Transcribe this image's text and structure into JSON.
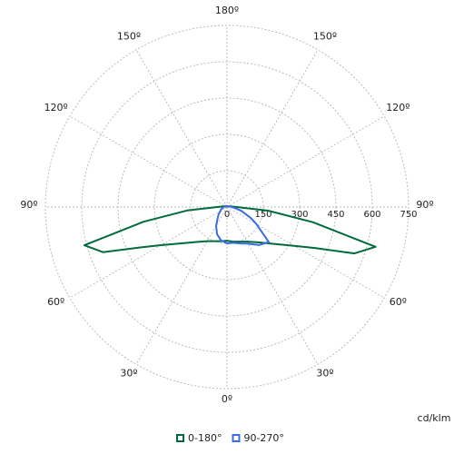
{
  "chart_data": {
    "type": "polar",
    "unit_label": "cd/klm",
    "x": [
      -180,
      -150,
      -120,
      -100,
      -90,
      -85,
      -80,
      -75,
      -70,
      -65,
      -60,
      -50,
      -40,
      -30,
      -20,
      -10,
      0,
      10,
      20,
      30,
      40,
      50,
      60,
      65,
      70,
      75,
      80,
      85,
      90,
      100,
      120,
      150,
      180
    ],
    "xticks": [
      {
        "value": 0,
        "label": "0º"
      },
      {
        "value": 30,
        "label": "30º"
      },
      {
        "value": 60,
        "label": "60º"
      },
      {
        "value": 90,
        "label": "90º"
      },
      {
        "value": 120,
        "label": "120º"
      },
      {
        "value": 150,
        "label": "150º"
      },
      {
        "value": 180,
        "label": "180º"
      }
    ],
    "ylim": [
      0,
      750
    ],
    "yticks": [
      0,
      150,
      300,
      450,
      600,
      750
    ],
    "grid": true,
    "series": [
      {
        "name": "0-180°",
        "color": "#006b3c",
        "values": [
          3,
          3,
          5,
          15,
          40,
          165,
          350,
          610,
          545,
          395,
          315,
          232,
          188,
          163,
          150,
          143,
          139,
          145,
          152,
          165,
          190,
          235,
          320,
          400,
          560,
          635,
          360,
          170,
          40,
          15,
          5,
          3,
          3
        ]
      },
      {
        "name": "90-270°",
        "color": "#3b6be3",
        "values": [
          3,
          5,
          8,
          10,
          12,
          14,
          18,
          22,
          25,
          28,
          30,
          45,
          60,
          90,
          120,
          140,
          150,
          150,
          160,
          175,
          205,
          225,
          140,
          110,
          80,
          60,
          40,
          28,
          20,
          10,
          5,
          3,
          3
        ]
      }
    ]
  }
}
